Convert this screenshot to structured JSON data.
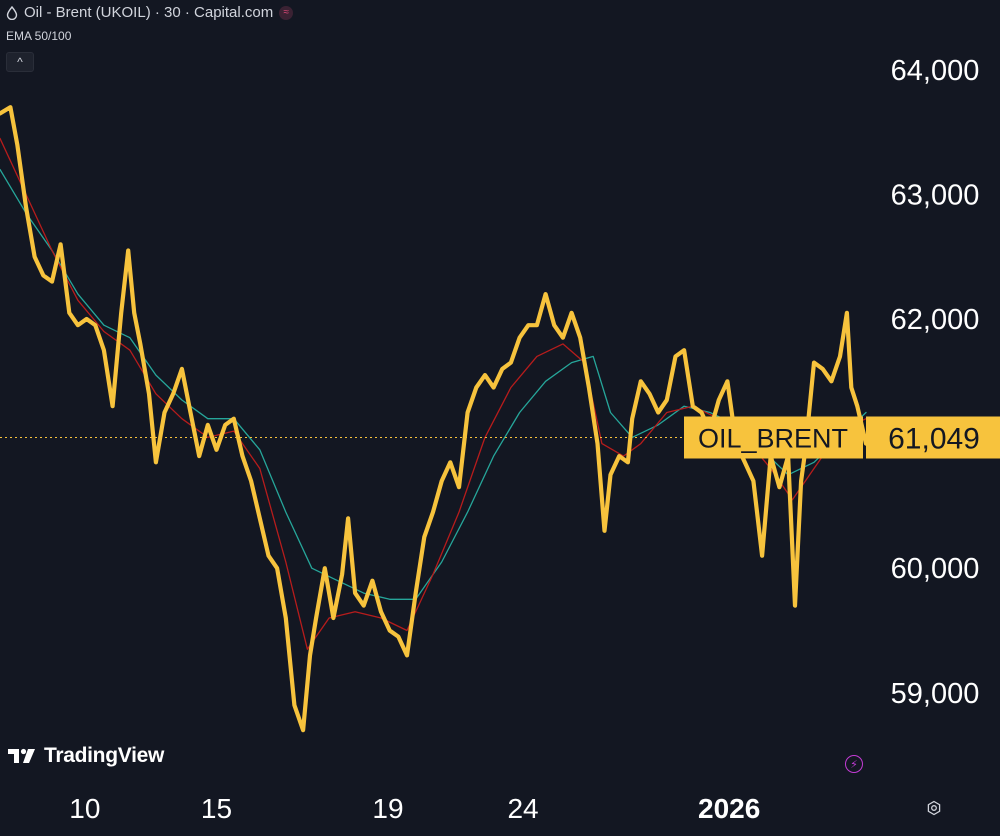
{
  "header": {
    "title": "Oil - Brent (UKOIL) · 30 · Capital.com",
    "status_icon": "market-status-icon",
    "indicator": "EMA 50/100",
    "collapse_glyph": "^"
  },
  "branding": {
    "logo_text": "TradingView"
  },
  "price_tag": {
    "label": "OIL_BRENT",
    "value": "61,049",
    "price": 61049
  },
  "colors": {
    "background": "#131722",
    "price_line": "#f7c33d",
    "ema_50": "#b71c1c",
    "ema_100": "#26a69a",
    "axis_text": "#ffffff",
    "tag_bg": "#f7c33d",
    "tag_text": "#131722"
  },
  "chart_data": {
    "type": "line",
    "title": "Oil - Brent (UKOIL) · 30 · Capital.com",
    "ylim": [
      58300,
      64400
    ],
    "yticks": [
      59000,
      60000,
      61000,
      62000,
      63000,
      64000
    ],
    "ytick_labels": [
      "59,000",
      "60,000",
      "",
      "62,000",
      "63,000",
      "64,000"
    ],
    "x_range": [
      0,
      100
    ],
    "xticks": [
      {
        "x": 9.8,
        "label": "10",
        "bold": false
      },
      {
        "x": 25.0,
        "label": "15",
        "bold": false
      },
      {
        "x": 44.8,
        "label": "19",
        "bold": false
      },
      {
        "x": 60.4,
        "label": "24",
        "bold": false
      },
      {
        "x": 84.2,
        "label": "2026",
        "bold": true
      }
    ],
    "series": [
      {
        "name": "OIL_BRENT",
        "points": [
          [
            0,
            63650
          ],
          [
            1.2,
            63700
          ],
          [
            2,
            63400
          ],
          [
            3,
            62900
          ],
          [
            4,
            62500
          ],
          [
            5,
            62350
          ],
          [
            6,
            62300
          ],
          [
            7,
            62600
          ],
          [
            8,
            62050
          ],
          [
            9,
            61950
          ],
          [
            10,
            62000
          ],
          [
            11,
            61950
          ],
          [
            12,
            61750
          ],
          [
            13,
            61300
          ],
          [
            14,
            62050
          ],
          [
            14.8,
            62550
          ],
          [
            15.5,
            62050
          ],
          [
            16.2,
            61800
          ],
          [
            17.2,
            61400
          ],
          [
            18,
            60850
          ],
          [
            19,
            61250
          ],
          [
            20,
            61400
          ],
          [
            21,
            61600
          ],
          [
            22,
            61250
          ],
          [
            23,
            60900
          ],
          [
            24,
            61150
          ],
          [
            25,
            60950
          ],
          [
            26,
            61150
          ],
          [
            27,
            61200
          ],
          [
            28,
            60900
          ],
          [
            29,
            60700
          ],
          [
            30,
            60400
          ],
          [
            31,
            60100
          ],
          [
            32,
            60000
          ],
          [
            33,
            59600
          ],
          [
            34,
            58900
          ],
          [
            35,
            58700
          ],
          [
            35.8,
            59300
          ],
          [
            36.5,
            59600
          ],
          [
            37.5,
            60000
          ],
          [
            38.5,
            59600
          ],
          [
            39.5,
            59950
          ],
          [
            40.2,
            60400
          ],
          [
            41,
            59800
          ],
          [
            42,
            59700
          ],
          [
            43,
            59900
          ],
          [
            44,
            59650
          ],
          [
            45,
            59500
          ],
          [
            46,
            59450
          ],
          [
            47,
            59300
          ],
          [
            48,
            59800
          ],
          [
            49,
            60250
          ],
          [
            50,
            60450
          ],
          [
            51,
            60700
          ],
          [
            52,
            60850
          ],
          [
            53,
            60650
          ],
          [
            54,
            61250
          ],
          [
            55,
            61450
          ],
          [
            56,
            61550
          ],
          [
            57,
            61450
          ],
          [
            58,
            61600
          ],
          [
            59,
            61650
          ],
          [
            60,
            61850
          ],
          [
            61,
            61950
          ],
          [
            62,
            61950
          ],
          [
            63,
            62200
          ],
          [
            64,
            61950
          ],
          [
            65,
            61850
          ],
          [
            66,
            62050
          ],
          [
            67,
            61850
          ],
          [
            68,
            61450
          ],
          [
            69,
            61000
          ],
          [
            69.8,
            60300
          ],
          [
            70.5,
            60750
          ],
          [
            71.5,
            60900
          ],
          [
            72.5,
            60850
          ],
          [
            73,
            61200
          ],
          [
            74,
            61500
          ],
          [
            75,
            61400
          ],
          [
            76,
            61250
          ],
          [
            77,
            61350
          ],
          [
            78,
            61700
          ],
          [
            79,
            61750
          ],
          [
            80,
            61300
          ],
          [
            81,
            61250
          ],
          [
            82,
            61100
          ],
          [
            83,
            61350
          ],
          [
            84,
            61500
          ],
          [
            85,
            61000
          ],
          [
            86,
            60850
          ],
          [
            87,
            60700
          ],
          [
            88,
            60100
          ],
          [
            89,
            60900
          ],
          [
            90,
            60650
          ],
          [
            91,
            60900
          ],
          [
            91.8,
            59700
          ],
          [
            92.5,
            60700
          ],
          [
            93,
            60950
          ],
          [
            94,
            61650
          ],
          [
            95,
            61600
          ],
          [
            96,
            61500
          ],
          [
            97,
            61700
          ],
          [
            97.8,
            62050
          ],
          [
            98.3,
            61450
          ],
          [
            99,
            61300
          ],
          [
            100,
            61000
          ]
        ]
      },
      {
        "points": [
          [
            0,
            63450
          ],
          [
            3,
            63000
          ],
          [
            6,
            62550
          ],
          [
            9,
            62150
          ],
          [
            12,
            61900
          ],
          [
            15,
            61750
          ],
          [
            18,
            61400
          ],
          [
            21,
            61200
          ],
          [
            24,
            61050
          ],
          [
            27,
            61100
          ],
          [
            30,
            60800
          ],
          [
            33,
            60050
          ],
          [
            35.5,
            59350
          ],
          [
            38,
            59600
          ],
          [
            41,
            59650
          ],
          [
            44,
            59600
          ],
          [
            47,
            59500
          ],
          [
            50,
            59950
          ],
          [
            53,
            60450
          ],
          [
            56,
            61050
          ],
          [
            59,
            61450
          ],
          [
            62,
            61700
          ],
          [
            65,
            61800
          ],
          [
            67.5,
            61650
          ],
          [
            69.5,
            61000
          ],
          [
            72,
            60900
          ],
          [
            74,
            61000
          ],
          [
            77,
            61250
          ],
          [
            80,
            61300
          ],
          [
            83,
            61200
          ],
          [
            86,
            61050
          ],
          [
            89,
            60800
          ],
          [
            91.5,
            60550
          ],
          [
            94,
            60800
          ],
          [
            97,
            61100
          ],
          [
            100,
            61200
          ]
        ]
      },
      {
        "points": [
          [
            0,
            63200
          ],
          [
            3,
            62850
          ],
          [
            6,
            62550
          ],
          [
            9,
            62200
          ],
          [
            12,
            61950
          ],
          [
            15,
            61850
          ],
          [
            18,
            61550
          ],
          [
            21,
            61350
          ],
          [
            24,
            61200
          ],
          [
            27,
            61200
          ],
          [
            30,
            60950
          ],
          [
            33,
            60450
          ],
          [
            36,
            60000
          ],
          [
            39,
            59900
          ],
          [
            42,
            59800
          ],
          [
            45,
            59750
          ],
          [
            48,
            59750
          ],
          [
            51,
            60050
          ],
          [
            54,
            60450
          ],
          [
            57,
            60900
          ],
          [
            60,
            61250
          ],
          [
            63,
            61500
          ],
          [
            66,
            61650
          ],
          [
            68.5,
            61700
          ],
          [
            70.5,
            61250
          ],
          [
            73,
            61050
          ],
          [
            76,
            61150
          ],
          [
            79,
            61300
          ],
          [
            82,
            61250
          ],
          [
            85,
            61150
          ],
          [
            88,
            60950
          ],
          [
            91,
            60750
          ],
          [
            94,
            60850
          ],
          [
            97,
            61050
          ],
          [
            100,
            61250
          ]
        ]
      }
    ]
  }
}
